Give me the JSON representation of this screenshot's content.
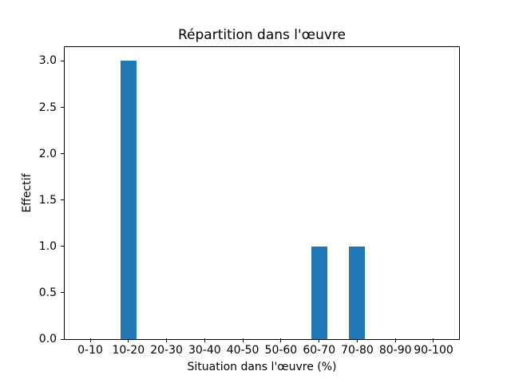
{
  "chart_data": {
    "type": "bar",
    "title": "Répartition dans l'œuvre",
    "xlabel": "Situation dans l'œuvre (%)",
    "ylabel": "Effectif",
    "categories": [
      "0-10",
      "10-20",
      "20-30",
      "30-40",
      "40-50",
      "50-60",
      "60-70",
      "70-80",
      "80-90",
      "90-100"
    ],
    "values": [
      0,
      3,
      0,
      0,
      0,
      0,
      1,
      1,
      0,
      0
    ],
    "yticks": [
      0.0,
      0.5,
      1.0,
      1.5,
      2.0,
      2.5,
      3.0
    ],
    "ytick_labels": [
      "0.0",
      "0.5",
      "1.0",
      "1.5",
      "2.0",
      "2.5",
      "3.0"
    ],
    "ylim": [
      0,
      3.15
    ],
    "bar_color": "#1f77b4",
    "axis_color": "#000000",
    "background_color": "#ffffff",
    "grid": false,
    "legend_position": "none",
    "x_margin_units": 0.67,
    "bar_width_fraction": 0.42
  }
}
